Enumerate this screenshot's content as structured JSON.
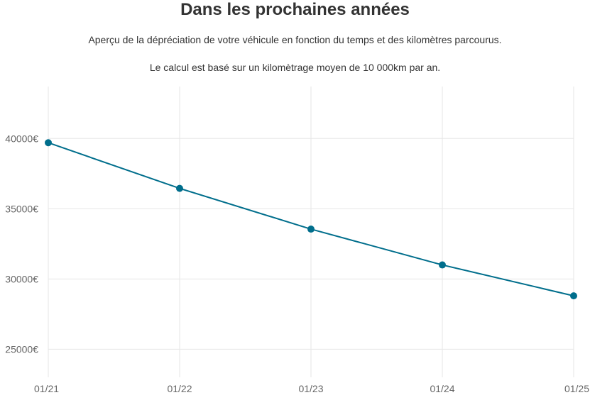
{
  "header": {
    "title": "Dans les prochaines années",
    "subtitle_1": "Aperçu de la dépréciation de votre véhicule en fonction du temps et des kilomètres parcourus.",
    "subtitle_2": "Le calcul est basé sur un kilomètrage moyen de 10 000km par an."
  },
  "colors": {
    "series": "#006e8c",
    "grid": "#e6e6e6",
    "tick_text": "#666666"
  },
  "chart_data": {
    "type": "line",
    "title": "Dans les prochaines années",
    "xlabel": "",
    "ylabel": "",
    "x": [
      "01/21",
      "01/22",
      "01/23",
      "01/24",
      "01/25"
    ],
    "series": [
      {
        "values": [
          39700,
          36450,
          33550,
          31000,
          28800
        ]
      }
    ],
    "ylim": [
      23000,
      43700
    ],
    "yticks": [
      25000,
      30000,
      35000,
      40000
    ],
    "ytick_labels": [
      "25000€",
      "30000€",
      "35000€",
      "40000€"
    ],
    "grid": true,
    "legend": "none"
  }
}
